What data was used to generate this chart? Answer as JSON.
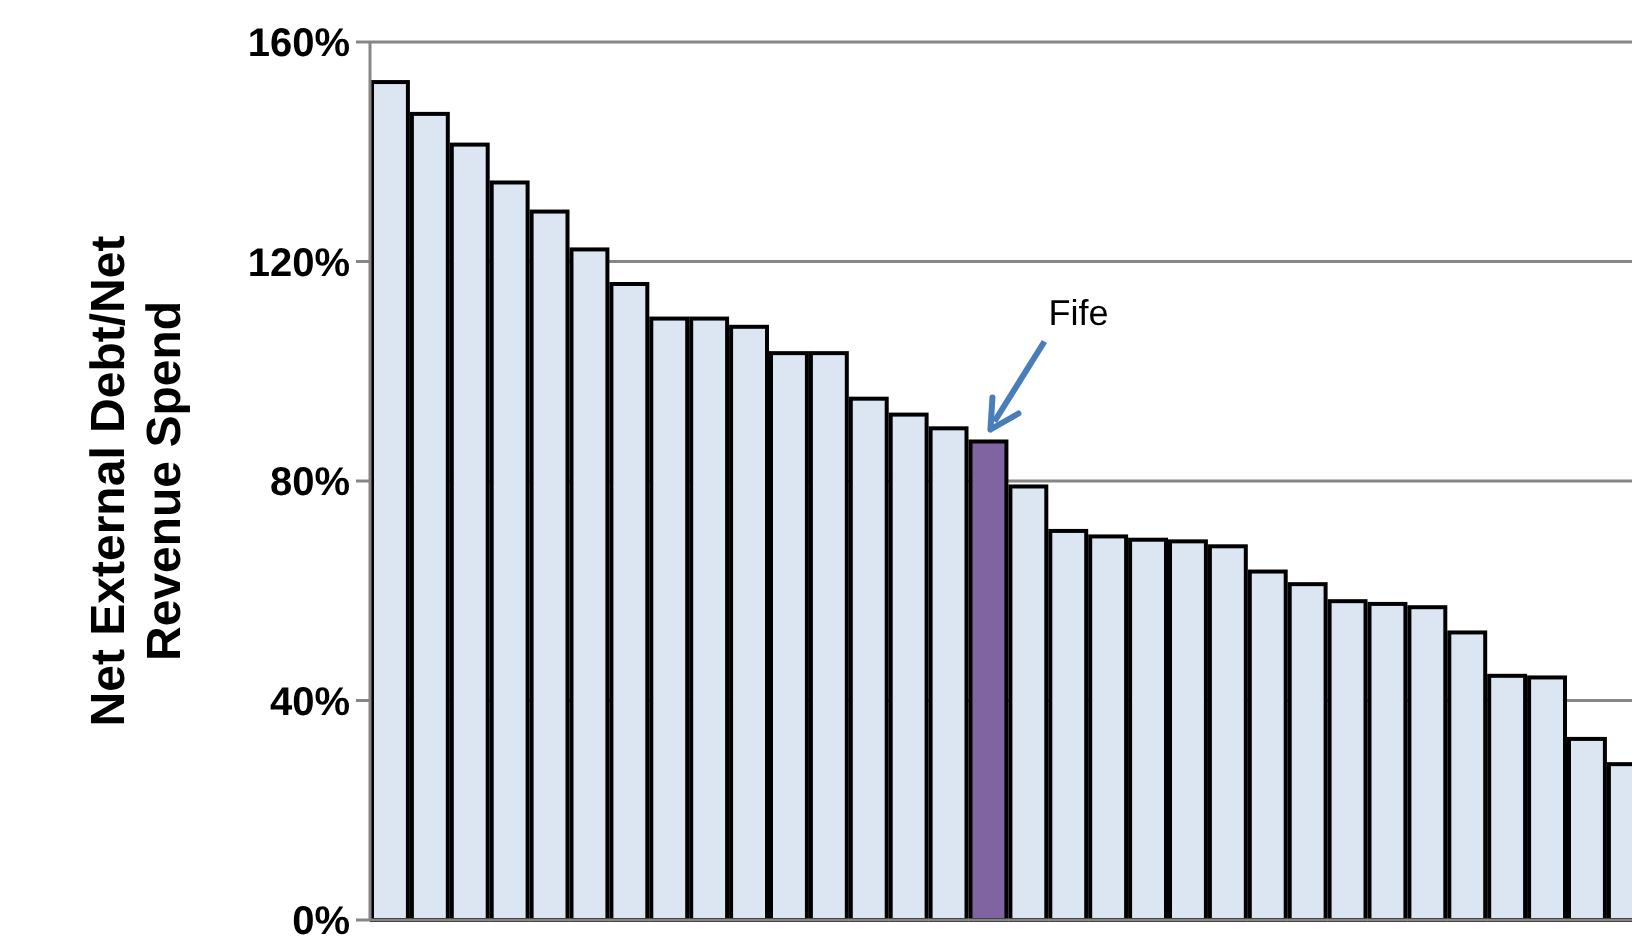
{
  "chart_data": {
    "type": "bar",
    "ylabel": "Net External Debt/Net\nRevenue Spend",
    "categories": [
      null,
      null,
      null,
      null,
      null,
      null,
      null,
      null,
      null,
      null,
      null,
      null,
      null,
      null,
      null,
      null,
      null,
      null,
      null,
      null,
      null,
      null,
      null,
      null,
      null,
      null,
      null,
      null,
      null,
      null,
      null,
      null
    ],
    "values": [
      152.7,
      146.9,
      141.3,
      134.4,
      129.1,
      122.2,
      115.9,
      109.6,
      109.6,
      108.1,
      103.3,
      103.3,
      95.0,
      92.1,
      89.6,
      87.2,
      79.0,
      70.9,
      69.9,
      69.3,
      69.0,
      68.1,
      63.5,
      61.2,
      58.1,
      57.6,
      57.0,
      52.4,
      44.5,
      44.2,
      33.0,
      28.4
    ],
    "colors": [
      "#dce6f2",
      "#dce6f2",
      "#dce6f2",
      "#dce6f2",
      "#dce6f2",
      "#dce6f2",
      "#dce6f2",
      "#dce6f2",
      "#dce6f2",
      "#dce6f2",
      "#dce6f2",
      "#dce6f2",
      "#dce6f2",
      "#dce6f2",
      "#dce6f2",
      "#8064a2",
      "#dce6f2",
      "#dce6f2",
      "#dce6f2",
      "#dce6f2",
      "#dce6f2",
      "#dce6f2",
      "#dce6f2",
      "#dce6f2",
      "#dce6f2",
      "#dce6f2",
      "#dce6f2",
      "#dce6f2",
      "#dce6f2",
      "#dce6f2",
      "#dce6f2",
      "#dce6f2"
    ],
    "ylim": [
      0,
      160
    ],
    "yticks": [
      {
        "value": 0,
        "label": "0%"
      },
      {
        "value": 40,
        "label": "40%"
      },
      {
        "value": 80,
        "label": "80%"
      },
      {
        "value": 120,
        "label": "120%"
      },
      {
        "value": 160,
        "label": "160%"
      }
    ],
    "grid": "y",
    "annotations": [
      "Fife"
    ]
  }
}
